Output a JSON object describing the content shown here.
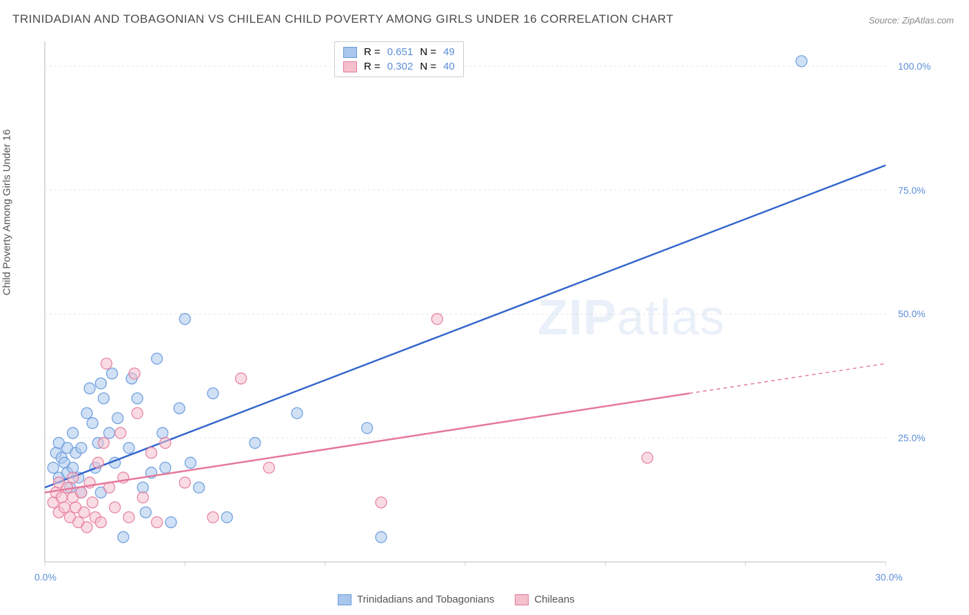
{
  "title": "TRINIDADIAN AND TOBAGONIAN VS CHILEAN CHILD POVERTY AMONG GIRLS UNDER 16 CORRELATION CHART",
  "source": "Source: ZipAtlas.com",
  "y_axis_label": "Child Poverty Among Girls Under 16",
  "watermark_bold": "ZIP",
  "watermark_light": "atlas",
  "chart": {
    "type": "scatter-with-regression",
    "xlim": [
      0,
      30
    ],
    "ylim": [
      0,
      105
    ],
    "background_color": "#ffffff",
    "grid_color": "#e5e5e5",
    "axis_color": "#d0d0d0",
    "tick_label_color": "#5b8dd6",
    "x_ticks": [
      0,
      5,
      10,
      15,
      20,
      25,
      30
    ],
    "x_tick_labels": {
      "0": "0.0%",
      "30": "30.0%"
    },
    "y_ticks": [
      25,
      50,
      75,
      100
    ],
    "y_tick_labels": {
      "25": "25.0%",
      "50": "50.0%",
      "75": "75.0%",
      "100": "100.0%"
    },
    "marker_radius": 8,
    "marker_opacity": 0.55,
    "marker_stroke_opacity": 0.9,
    "line_width": 2.5,
    "series": [
      {
        "id": "trinidadians",
        "label": "Trinidadians and Tobagonians",
        "color_fill": "#a9c6ec",
        "color_stroke": "#6599db",
        "line_color": "#3366cc",
        "R": "0.651",
        "N": "49",
        "regression": {
          "x1": 0,
          "y1": 15,
          "x2": 30,
          "y2": 80
        },
        "points": [
          [
            0.3,
            19
          ],
          [
            0.4,
            22
          ],
          [
            0.5,
            17
          ],
          [
            0.5,
            24
          ],
          [
            0.6,
            21
          ],
          [
            0.7,
            20
          ],
          [
            0.8,
            18
          ],
          [
            0.8,
            23
          ],
          [
            0.9,
            15
          ],
          [
            1.0,
            26
          ],
          [
            1.0,
            19
          ],
          [
            1.1,
            22
          ],
          [
            1.2,
            17
          ],
          [
            1.3,
            23
          ],
          [
            1.3,
            14
          ],
          [
            1.5,
            30
          ],
          [
            1.6,
            35
          ],
          [
            1.7,
            28
          ],
          [
            1.8,
            19
          ],
          [
            1.9,
            24
          ],
          [
            2.0,
            36
          ],
          [
            2.0,
            14
          ],
          [
            2.1,
            33
          ],
          [
            2.3,
            26
          ],
          [
            2.4,
            38
          ],
          [
            2.5,
            20
          ],
          [
            2.6,
            29
          ],
          [
            2.8,
            5
          ],
          [
            3.0,
            23
          ],
          [
            3.1,
            37
          ],
          [
            3.3,
            33
          ],
          [
            3.5,
            15
          ],
          [
            3.6,
            10
          ],
          [
            3.8,
            18
          ],
          [
            4.0,
            41
          ],
          [
            4.2,
            26
          ],
          [
            4.3,
            19
          ],
          [
            4.5,
            8
          ],
          [
            4.8,
            31
          ],
          [
            5.0,
            49
          ],
          [
            5.2,
            20
          ],
          [
            5.5,
            15
          ],
          [
            6.0,
            34
          ],
          [
            6.5,
            9
          ],
          [
            7.5,
            24
          ],
          [
            9.0,
            30
          ],
          [
            11.5,
            27
          ],
          [
            12.0,
            5
          ],
          [
            27.0,
            101
          ]
        ]
      },
      {
        "id": "chileans",
        "label": "Chileans",
        "color_fill": "#f4c0cc",
        "color_stroke": "#e5789a",
        "line_color": "#e5789a",
        "R": "0.302",
        "N": "40",
        "regression": {
          "x1": 0,
          "y1": 14,
          "x2": 23,
          "y2": 34
        },
        "regression_extrap": {
          "x1": 23,
          "y1": 34,
          "x2": 30,
          "y2": 40
        },
        "points": [
          [
            0.3,
            12
          ],
          [
            0.4,
            14
          ],
          [
            0.5,
            10
          ],
          [
            0.5,
            16
          ],
          [
            0.6,
            13
          ],
          [
            0.7,
            11
          ],
          [
            0.8,
            15
          ],
          [
            0.9,
            9
          ],
          [
            1.0,
            17
          ],
          [
            1.0,
            13
          ],
          [
            1.1,
            11
          ],
          [
            1.2,
            8
          ],
          [
            1.3,
            14
          ],
          [
            1.4,
            10
          ],
          [
            1.5,
            7
          ],
          [
            1.6,
            16
          ],
          [
            1.7,
            12
          ],
          [
            1.8,
            9
          ],
          [
            1.9,
            20
          ],
          [
            2.0,
            8
          ],
          [
            2.1,
            24
          ],
          [
            2.2,
            40
          ],
          [
            2.3,
            15
          ],
          [
            2.5,
            11
          ],
          [
            2.7,
            26
          ],
          [
            2.8,
            17
          ],
          [
            3.0,
            9
          ],
          [
            3.2,
            38
          ],
          [
            3.3,
            30
          ],
          [
            3.5,
            13
          ],
          [
            3.8,
            22
          ],
          [
            4.0,
            8
          ],
          [
            4.3,
            24
          ],
          [
            5.0,
            16
          ],
          [
            6.0,
            9
          ],
          [
            7.0,
            37
          ],
          [
            8.0,
            19
          ],
          [
            12.0,
            12
          ],
          [
            14.0,
            49
          ],
          [
            21.5,
            21
          ]
        ]
      }
    ]
  },
  "legend_top": {
    "R_label": "R  =",
    "N_label": "N  ="
  }
}
